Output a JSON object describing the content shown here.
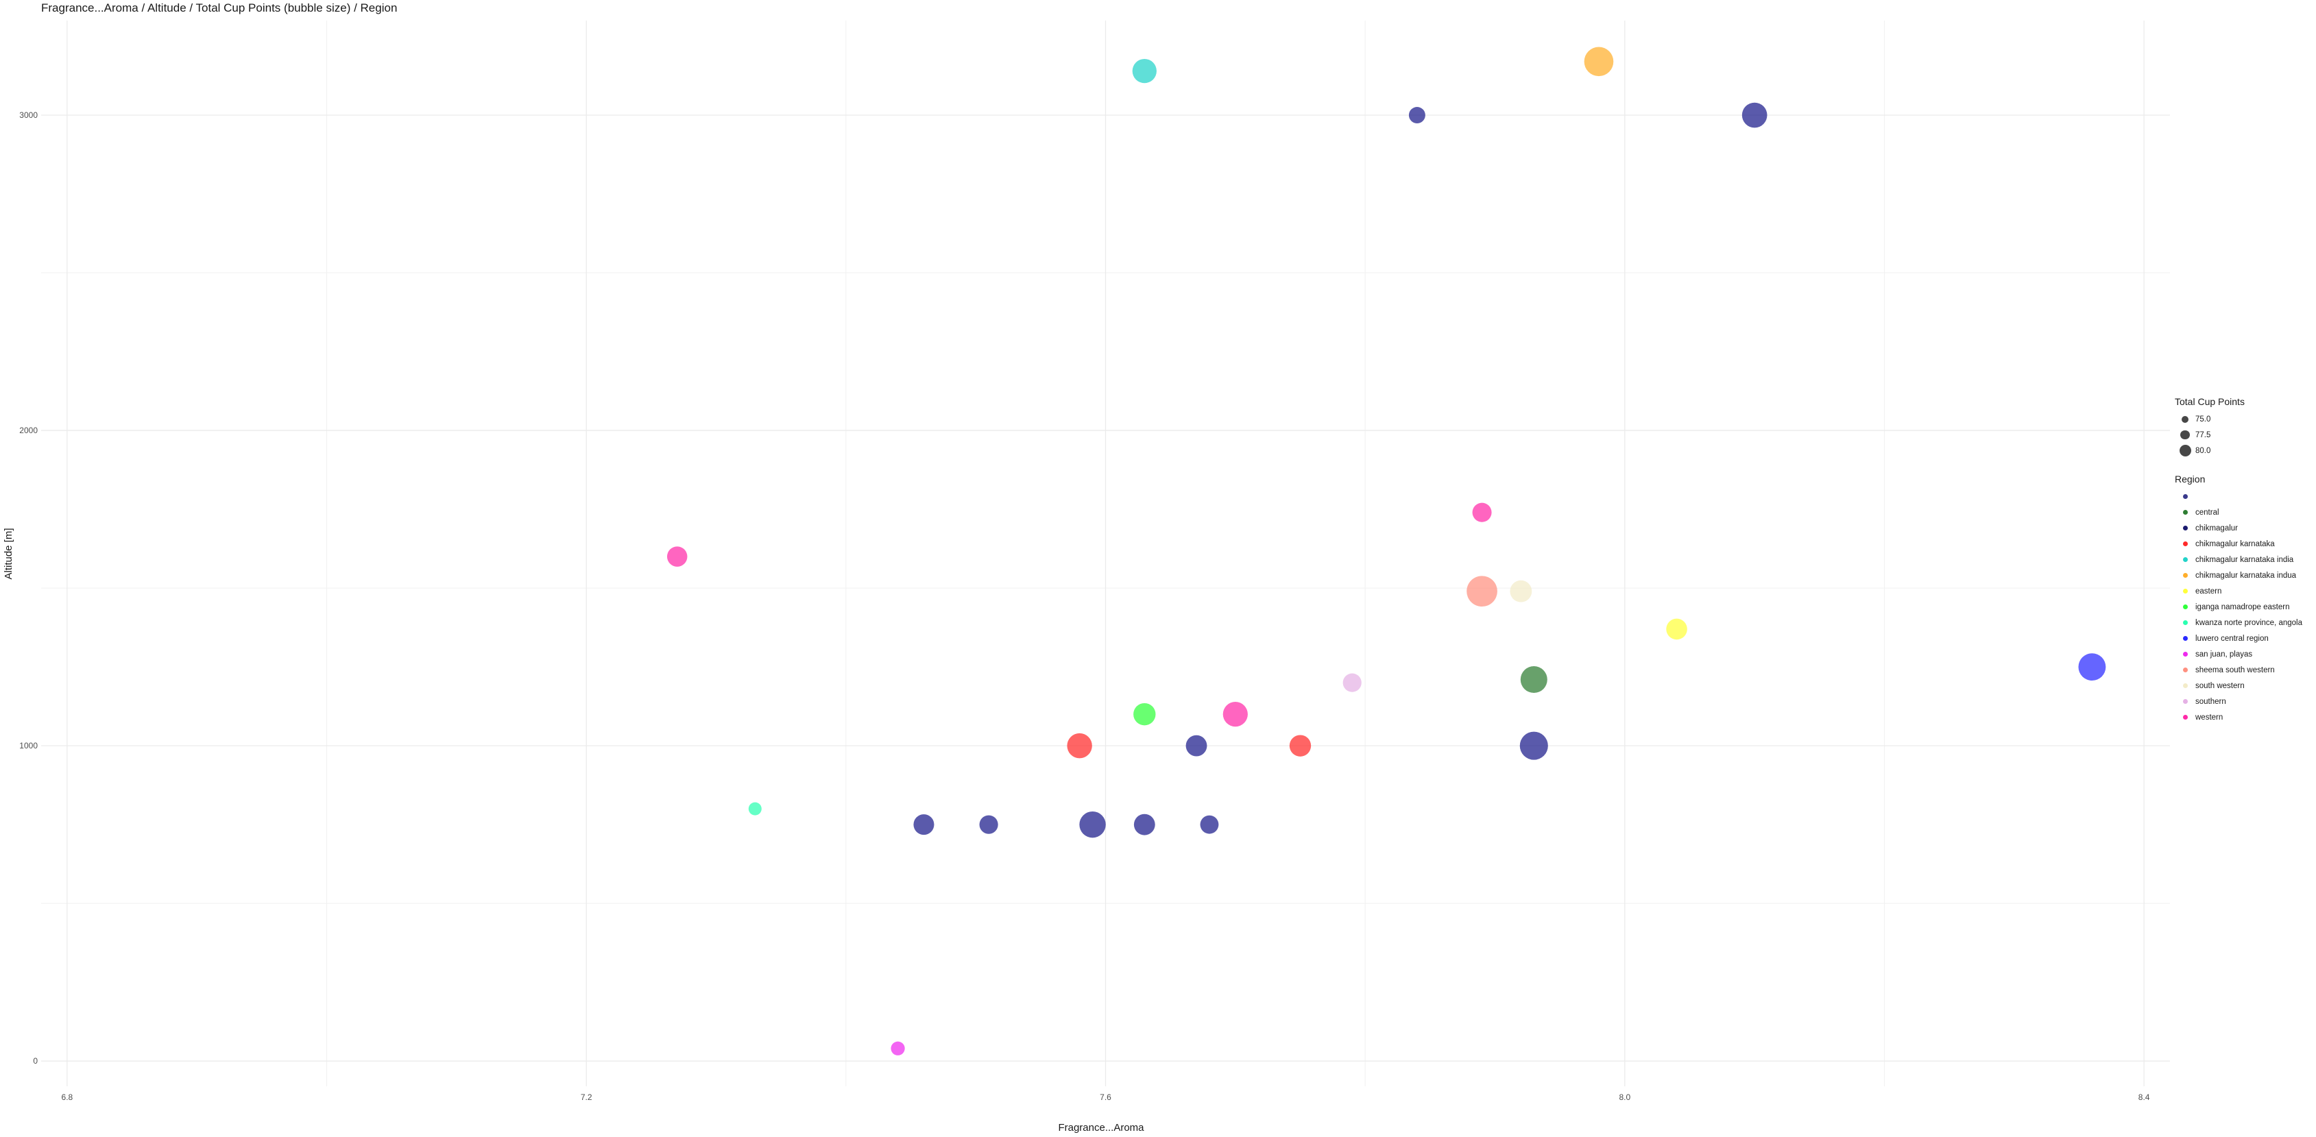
{
  "chart_data": {
    "type": "scatter",
    "title": "Fragrance...Aroma / Altitude / Total Cup Points (bubble size) / Region",
    "xlabel": "Fragrance...Aroma",
    "ylabel": "Altitude [m]",
    "xlim": [
      6.78,
      8.42
    ],
    "ylim": [
      -80,
      3300
    ],
    "x_ticks": [
      "6.8",
      "7.2",
      "7.6",
      "8.0",
      "8.4"
    ],
    "x_tick_values": [
      6.8,
      7.2,
      7.6,
      8.0,
      8.4
    ],
    "y_ticks": [
      "0",
      "1000",
      "2000",
      "3000"
    ],
    "y_tick_values": [
      0,
      1000,
      2000,
      3000
    ],
    "grid": true,
    "legend_position": "right",
    "size_legend": {
      "title": "Total Cup Points",
      "entries": [
        {
          "label": "75.0",
          "value": 75.0
        },
        {
          "label": "77.5",
          "value": 77.5
        },
        {
          "label": "80.0",
          "value": 80.0
        }
      ]
    },
    "color_legend": {
      "title": "Region",
      "entries": [
        {
          "label": "",
          "color": "#3a3a8c"
        },
        {
          "label": "central",
          "color": "#2e7d32"
        },
        {
          "label": "chikmagalur",
          "color": "#1b1b6e"
        },
        {
          "label": "chikmagalur karnataka",
          "color": "#ff2a2a"
        },
        {
          "label": "chikmagalur karnataka india",
          "color": "#22d3c9"
        },
        {
          "label": "chikmagalur karnataka indua",
          "color": "#ffae2b"
        },
        {
          "label": "eastern",
          "color": "#ffff3a"
        },
        {
          "label": "iganga namadrope eastern",
          "color": "#2fff3a"
        },
        {
          "label": "kwanza norte province, angola",
          "color": "#2affb0"
        },
        {
          "label": "luwero central region",
          "color": "#2a2aff"
        },
        {
          "label": "san juan, playas",
          "color": "#ee2aee"
        },
        {
          "label": "sheema south western",
          "color": "#ff9080"
        },
        {
          "label": "south western",
          "color": "#f3ecc9"
        },
        {
          "label": "southern",
          "color": "#e5b1e5"
        },
        {
          "label": "western",
          "color": "#ff2aa8"
        }
      ]
    },
    "series": [
      {
        "region": "",
        "color": "#1b1b8a",
        "points": [
          {
            "x": 7.46,
            "y": 750,
            "size": 76.5
          },
          {
            "x": 7.51,
            "y": 750,
            "size": 75.5
          },
          {
            "x": 7.59,
            "y": 750,
            "size": 80.0
          },
          {
            "x": 7.63,
            "y": 750,
            "size": 76.8
          },
          {
            "x": 7.68,
            "y": 750,
            "size": 75.4
          },
          {
            "x": 7.67,
            "y": 1000,
            "size": 76.8
          },
          {
            "x": 7.93,
            "y": 1000,
            "size": 81.3
          },
          {
            "x": 7.84,
            "y": 3000,
            "size": 74.5
          },
          {
            "x": 8.1,
            "y": 3000,
            "size": 79.2
          }
        ]
      },
      {
        "region": "central",
        "color": "#2e7d32",
        "points": [
          {
            "x": 7.93,
            "y": 1210,
            "size": 80.3
          }
        ]
      },
      {
        "region": "chikmagalur karnataka",
        "color": "#ff2a2a",
        "points": [
          {
            "x": 7.58,
            "y": 1000,
            "size": 79.1
          },
          {
            "x": 7.75,
            "y": 1000,
            "size": 77.0
          }
        ]
      },
      {
        "region": "chikmagalur karnataka india",
        "color": "#22d3c9",
        "points": [
          {
            "x": 7.63,
            "y": 3140,
            "size": 78.6
          }
        ]
      },
      {
        "region": "chikmagalur karnataka indua",
        "color": "#ffae2b",
        "points": [
          {
            "x": 7.98,
            "y": 3170,
            "size": 82.1
          }
        ]
      },
      {
        "region": "eastern",
        "color": "#ffff3a",
        "points": [
          {
            "x": 8.04,
            "y": 1370,
            "size": 76.7
          }
        ]
      },
      {
        "region": "iganga namadrope eastern",
        "color": "#2fff3a",
        "points": [
          {
            "x": 7.63,
            "y": 1100,
            "size": 77.4
          }
        ]
      },
      {
        "region": "kwanza norte province, angola",
        "color": "#2affb0",
        "points": [
          {
            "x": 7.33,
            "y": 800,
            "size": 73.2
          }
        ]
      },
      {
        "region": "luwero central region",
        "color": "#2a2aff",
        "points": [
          {
            "x": 8.36,
            "y": 1250,
            "size": 80.7
          }
        ]
      },
      {
        "region": "san juan, playas",
        "color": "#ee2aee",
        "points": [
          {
            "x": 7.44,
            "y": 40,
            "size": 73.5
          }
        ]
      },
      {
        "region": "sheema south western",
        "color": "#ff9080",
        "points": [
          {
            "x": 7.89,
            "y": 1490,
            "size": 83.2
          }
        ]
      },
      {
        "region": "south western",
        "color": "#f3ecc9",
        "points": [
          {
            "x": 7.92,
            "y": 1490,
            "size": 77.2
          }
        ]
      },
      {
        "region": "southern",
        "color": "#e5b1e5",
        "points": [
          {
            "x": 7.79,
            "y": 1200,
            "size": 75.5
          }
        ]
      },
      {
        "region": "western",
        "color": "#ff2aa8",
        "points": [
          {
            "x": 7.27,
            "y": 1600,
            "size": 76.3
          },
          {
            "x": 7.7,
            "y": 1100,
            "size": 79.0
          },
          {
            "x": 7.89,
            "y": 1740,
            "size": 75.8
          }
        ]
      }
    ]
  }
}
